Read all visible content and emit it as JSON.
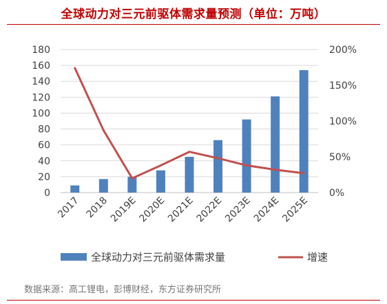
{
  "header": {
    "title": "全球动力对三元前驱体需求量预测（单位：万吨）"
  },
  "footer": {
    "source": "数据来源：高工锂电，彭博财经，东方证券研究所"
  },
  "colors": {
    "accent": "#c00000",
    "bar": "#4f81bd",
    "line": "#c0504d"
  },
  "chart_data": {
    "type": "bar",
    "title": "全球动力对三元前驱体需求量预测（单位：万吨）",
    "categories": [
      "2017",
      "2018",
      "2019E",
      "2020E",
      "2021E",
      "2022E",
      "2023E",
      "2024E",
      "2025E"
    ],
    "y_ticks": [
      "0",
      "20",
      "40",
      "60",
      "80",
      "100",
      "120",
      "140",
      "160",
      "180"
    ],
    "y2_ticks": [
      "0%",
      "50%",
      "100%",
      "150%",
      "200%"
    ],
    "ylim": [
      0,
      180
    ],
    "y2lim": [
      0,
      2
    ],
    "grid": true,
    "legend_position": "bottom",
    "series": [
      {
        "name": "全球动力对三元前驱体需求量",
        "type": "bar",
        "axis": "left",
        "values": [
          9,
          17,
          20,
          28,
          45,
          66,
          92,
          121,
          154
        ]
      },
      {
        "name": "增速",
        "type": "line",
        "axis": "right",
        "values": [
          1.74,
          0.87,
          0.2,
          0.38,
          0.57,
          0.48,
          0.38,
          0.32,
          0.27
        ]
      }
    ]
  }
}
